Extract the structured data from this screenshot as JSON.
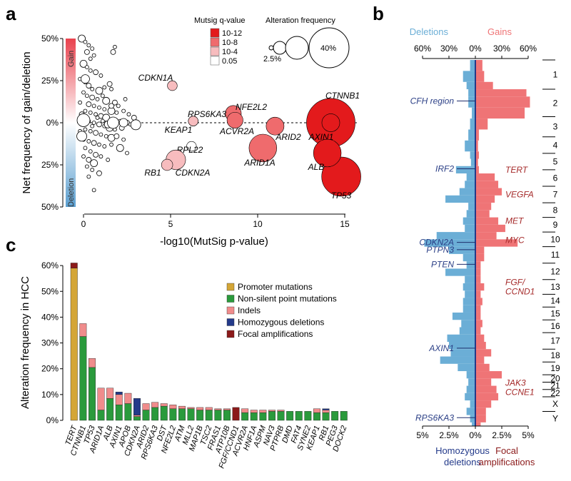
{
  "panel_labels": {
    "a": "a",
    "b": "b",
    "c": "c"
  },
  "colors": {
    "red": "#e31a1c",
    "red_mid": "#ef6b6d",
    "red_light": "#f7bcbe",
    "gain_red": "#ef7476",
    "del_blue": "#6baed6",
    "dark_navy": "#1f2d6b",
    "dark_red": "#8b1a1a",
    "promoter": "#d4a637",
    "nonsilent": "#2a9a3c",
    "indel": "#f08c8c",
    "homdel": "#233a8a",
    "focal": "#8b1a1a",
    "label_blue": "#2b3f86",
    "label_red": "#a52a2a"
  },
  "chart_data": [
    {
      "id": "a",
      "type": "scatter",
      "xlabel": "-log10(MutSig p-value)",
      "ylabel": "Net frequency of gain/deletion",
      "xlim": [
        -1,
        15
      ],
      "ylim": [
        -50,
        50
      ],
      "xticks": [
        "0",
        "5",
        "10",
        "15"
      ],
      "yticks": [
        "50%",
        "25%",
        "0%",
        "25%",
        "50%"
      ],
      "gradient_top_label": "Gain",
      "gradient_bottom_label": "Deletion",
      "legend_q_title": "Mutsig q-value",
      "legend_q_items": [
        "10-12",
        "10-8",
        "10-4",
        "0.05"
      ],
      "legend_size_title": "Alteration frequency",
      "legend_size_items": [
        "2.5%",
        "40%"
      ],
      "labeled_points": [
        {
          "gene": "CTNNB1",
          "x": 14.2,
          "y": 0,
          "freq": 37,
          "q": "10-12"
        },
        {
          "gene": "AXIN1",
          "x": 14.2,
          "y": 0,
          "freq": 5,
          "q": "10-12"
        },
        {
          "gene": "TP53",
          "x": 14.8,
          "y": -32,
          "freq": 24,
          "q": "10-12"
        },
        {
          "gene": "ALB",
          "x": 14.0,
          "y": -18,
          "freq": 12,
          "q": "10-12"
        },
        {
          "gene": "ARID1A",
          "x": 10.3,
          "y": -15,
          "freq": 12,
          "q": "10-8"
        },
        {
          "gene": "ARID2",
          "x": 11.0,
          "y": -2,
          "freq": 5,
          "q": "10-8"
        },
        {
          "gene": "NFE2L2",
          "x": 8.6,
          "y": 5.5,
          "freq": 4,
          "q": "10-8"
        },
        {
          "gene": "ACVR2A",
          "x": 8.7,
          "y": 1.5,
          "freq": 4,
          "q": "10-8"
        },
        {
          "gene": "RPS6KA3",
          "x": 6.3,
          "y": 1,
          "freq": 1.5,
          "q": "10-4"
        },
        {
          "gene": "KEAP1",
          "x": 6.3,
          "y": 1,
          "freq": 1.5,
          "q": "10-4"
        },
        {
          "gene": "CDKN1A",
          "x": 5.1,
          "y": 22,
          "freq": 1.5,
          "q": "10-4"
        },
        {
          "gene": "RPL22",
          "x": 6.2,
          "y": -14,
          "freq": 1.5,
          "q": "0.05"
        },
        {
          "gene": "CDKN2A",
          "x": 5.3,
          "y": -22,
          "freq": 6,
          "q": "10-4"
        },
        {
          "gene": "RB1",
          "x": 4.8,
          "y": -25,
          "freq": 2,
          "q": "10-4"
        }
      ],
      "background_points": [
        [
          -0.1,
          50
        ],
        [
          0.1,
          48
        ],
        [
          0.3,
          46
        ],
        [
          0.5,
          44
        ],
        [
          0.2,
          42
        ],
        [
          0.6,
          40
        ],
        [
          0.4,
          38
        ],
        [
          1.8,
          45
        ],
        [
          1.7,
          42
        ],
        [
          0.0,
          35
        ],
        [
          0.2,
          33
        ],
        [
          0.4,
          31
        ],
        [
          0.7,
          30
        ],
        [
          1.0,
          28
        ],
        [
          -0.2,
          26
        ],
        [
          0.1,
          24
        ],
        [
          0.3,
          22
        ],
        [
          0.5,
          20
        ],
        [
          0.9,
          19
        ],
        [
          1.2,
          21
        ],
        [
          1.5,
          23
        ],
        [
          1.6,
          20
        ],
        [
          0.0,
          18
        ],
        [
          0.2,
          16
        ],
        [
          0.5,
          15
        ],
        [
          0.8,
          14
        ],
        [
          1.1,
          16
        ],
        [
          1.3,
          13
        ],
        [
          1.8,
          12
        ],
        [
          2.0,
          10
        ],
        [
          2.4,
          14
        ],
        [
          -0.2,
          12
        ],
        [
          0.3,
          11
        ],
        [
          0.6,
          10
        ],
        [
          0.9,
          9
        ],
        [
          1.2,
          8
        ],
        [
          1.6,
          7
        ],
        [
          1.9,
          6
        ],
        [
          2.3,
          7
        ],
        [
          2.6,
          5
        ],
        [
          2.9,
          3
        ],
        [
          0.1,
          7
        ],
        [
          0.4,
          6
        ],
        [
          0.7,
          5
        ],
        [
          1.0,
          4
        ],
        [
          1.3,
          3
        ],
        [
          1.7,
          2
        ],
        [
          2.1,
          1
        ],
        [
          2.5,
          0
        ],
        [
          0.0,
          2
        ],
        [
          0.3,
          1
        ],
        [
          0.6,
          0
        ],
        [
          0.9,
          -1
        ],
        [
          1.2,
          -2
        ],
        [
          1.5,
          -3
        ],
        [
          1.8,
          -4
        ],
        [
          2.2,
          -3
        ],
        [
          2.7,
          -1
        ],
        [
          0.1,
          -4
        ],
        [
          0.4,
          -5
        ],
        [
          0.7,
          -6
        ],
        [
          1.0,
          -7
        ],
        [
          1.3,
          -8
        ],
        [
          1.6,
          -9
        ],
        [
          1.9,
          -8
        ],
        [
          2.3,
          -10
        ],
        [
          0.0,
          -10
        ],
        [
          0.3,
          -11
        ],
        [
          0.6,
          -12
        ],
        [
          0.9,
          -13
        ],
        [
          1.2,
          -14
        ],
        [
          1.6,
          -13
        ],
        [
          2.1,
          -15
        ],
        [
          2.5,
          -18
        ],
        [
          0.1,
          -15
        ],
        [
          0.4,
          -17
        ],
        [
          0.7,
          -19
        ],
        [
          1.0,
          -20
        ],
        [
          1.4,
          -22
        ],
        [
          0.0,
          -20
        ],
        [
          0.3,
          -22
        ],
        [
          0.6,
          -24
        ],
        [
          0.2,
          -26
        ],
        [
          0.5,
          -28
        ],
        [
          0.9,
          -30
        ],
        [
          0.3,
          -32
        ],
        [
          0.6,
          -40
        ],
        [
          -0.2,
          -5
        ],
        [
          -0.1,
          5
        ],
        [
          3.0,
          0
        ],
        [
          1.4,
          -1
        ],
        [
          0.8,
          3
        ],
        [
          1.6,
          10
        ],
        [
          0.5,
          -2
        ],
        [
          1.1,
          1
        ]
      ]
    },
    {
      "id": "b",
      "type": "area",
      "deletions_label": "Deletions",
      "gains_label": "Gains",
      "top_axis": [
        "60%",
        "30%",
        "0%",
        "30%",
        "60%"
      ],
      "bottom_axis": [
        "5%",
        "2.5%",
        "0%",
        "2.5%",
        "5%"
      ],
      "homdel_label": [
        "Homozygous",
        "deletions"
      ],
      "focal_label": [
        "Focal",
        "amplifications"
      ],
      "chromosomes": [
        "1",
        "2",
        "3",
        "4",
        "5",
        "6",
        "7",
        "8",
        "9",
        "10",
        "11",
        "12",
        "13",
        "14",
        "15",
        "16",
        "17",
        "18",
        "19",
        "20",
        "21",
        "22",
        "X",
        "Y"
      ],
      "left_genes": [
        {
          "name": "CFH region",
          "pos": 0.12
        },
        {
          "name": "IRF2",
          "pos": 0.305
        },
        {
          "name": "CDKN2A",
          "pos": 0.506
        },
        {
          "name": "PTPN3",
          "pos": 0.526
        },
        {
          "name": "PTEN",
          "pos": 0.566
        },
        {
          "name": "AXIN1",
          "pos": 0.795
        },
        {
          "name": "RPS6KA3",
          "pos": 0.985
        }
      ],
      "right_genes": [
        {
          "name": "TERT",
          "pos": 0.308
        },
        {
          "name": "VEGFA",
          "pos": 0.375
        },
        {
          "name": "MET",
          "pos": 0.447
        },
        {
          "name": "MYC",
          "pos": 0.5
        },
        {
          "name": "FGF/",
          "pos": 0.615
        },
        {
          "name": "CCND1",
          "pos": 0.64
        },
        {
          "name": "JAK3",
          "pos": 0.89
        },
        {
          "name": "CCNE1",
          "pos": 0.915
        }
      ]
    },
    {
      "id": "c",
      "type": "bar",
      "ylabel": "Alteration frequency in HCC",
      "ylim": [
        0,
        62
      ],
      "yticks": [
        "0%",
        "10%",
        "20%",
        "30%",
        "40%",
        "50%",
        "60%"
      ],
      "legend": [
        "Promoter mutations",
        "Non-silent point mutations",
        "Indels",
        "Homozygous deletions",
        "Focal amplifications"
      ],
      "categories": [
        "TERT",
        "CTNNB1",
        "TP53",
        "ARID1A",
        "ALB",
        "AXIN1",
        "APOB",
        "CDKN2A",
        "ARID2",
        "RPS6KA3",
        "DST",
        "NFE2L2",
        "ATM",
        "MLL2",
        "MAP1B",
        "TSC2",
        "FRAS1",
        "ATP10B",
        "FGF/CCND1",
        "ACVR2A",
        "HNF1A",
        "ASPM",
        "NAV3",
        "PTPRB",
        "DMD",
        "FAT4",
        "SYNE2",
        "KEAP1",
        "RB1",
        "PEG3",
        "DOCK2"
      ],
      "series": [
        {
          "name": "Promoter mutations",
          "values": [
            59,
            0,
            0,
            0,
            0,
            0,
            0,
            0,
            0,
            0,
            0,
            0,
            0,
            0,
            0,
            0,
            0,
            0,
            0,
            0,
            0,
            0,
            0,
            0,
            0,
            0,
            0,
            0,
            0,
            0,
            0
          ]
        },
        {
          "name": "Non-silent point mutations",
          "values": [
            0,
            32.5,
            20.5,
            4,
            8.5,
            6,
            6.5,
            1.5,
            4,
            5,
            5.5,
            4.5,
            4.5,
            4.5,
            4,
            4,
            4,
            4,
            0,
            3,
            3,
            3,
            3.5,
            3.5,
            3.5,
            3.5,
            3.5,
            3,
            3,
            3.5,
            3.5
          ]
        },
        {
          "name": "Indels",
          "values": [
            0,
            5,
            3.5,
            8.5,
            4,
            4,
            4,
            0.5,
            2.5,
            2,
            1,
            1.5,
            1,
            0.5,
            1,
            1,
            0.5,
            0.5,
            0,
            1.5,
            1,
            1,
            0.5,
            0.5,
            0,
            0,
            0,
            1.5,
            1,
            0,
            0
          ]
        },
        {
          "name": "Homozygous deletions",
          "values": [
            0,
            0,
            0,
            0,
            0,
            1,
            0,
            6.5,
            0,
            0,
            0,
            0,
            0,
            0,
            0,
            0,
            0,
            0,
            0,
            0,
            0,
            0,
            0,
            0,
            0,
            0,
            0,
            0,
            0.5,
            0,
            0
          ]
        },
        {
          "name": "Focal amplifications",
          "values": [
            2,
            0,
            0,
            0,
            0,
            0,
            0,
            0,
            0,
            0,
            0,
            0,
            0,
            0,
            0,
            0,
            0,
            0,
            5,
            0,
            0,
            0,
            0,
            0,
            0,
            0,
            0,
            0,
            0,
            0,
            0
          ]
        }
      ]
    }
  ]
}
